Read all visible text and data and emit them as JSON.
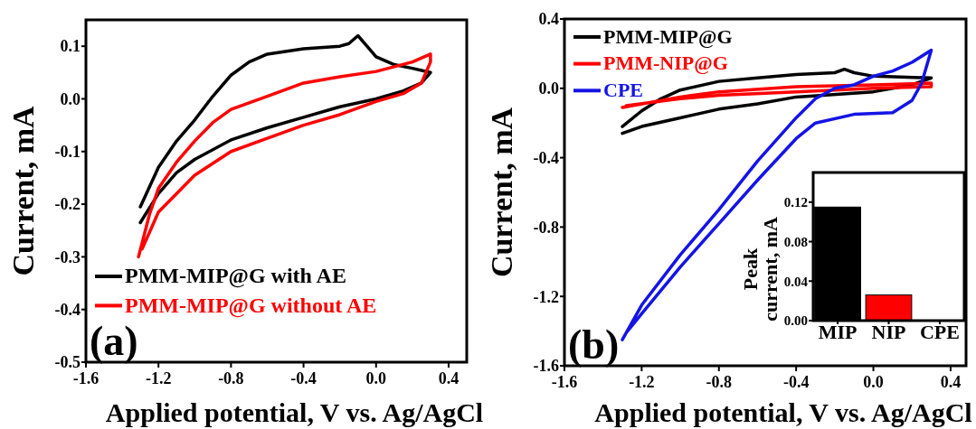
{
  "chart_data": [
    {
      "type": "line",
      "xlabel": "Applied potential, V vs. Ag/AgCl",
      "ylabel": "Current, mA",
      "xlim": [
        -1.6,
        0.5
      ],
      "ylim": [
        -0.5,
        0.15
      ],
      "xticks": [
        {
          "value": -1.6,
          "label": "-1.6"
        },
        {
          "value": -1.2,
          "label": "-1.2"
        },
        {
          "value": -0.8,
          "label": "-0.8"
        },
        {
          "value": -0.4,
          "label": "-0.4"
        },
        {
          "value": 0,
          "label": "0.0"
        },
        {
          "value": 0.4,
          "label": "0.4"
        }
      ],
      "yticks": [
        {
          "value": -0.5,
          "label": "-0.5"
        },
        {
          "value": -0.4,
          "label": "-0.4"
        },
        {
          "value": -0.3,
          "label": "-0.3"
        },
        {
          "value": -0.2,
          "label": "-0.2"
        },
        {
          "value": -0.1,
          "label": "-0.1"
        },
        {
          "value": 0,
          "label": "0.0"
        },
        {
          "value": 0.1,
          "label": "0.1"
        }
      ],
      "legend": "bottom left",
      "annotations": [
        "(a)"
      ],
      "series": [
        {
          "name": "PMM-MIP@G with AE",
          "color": "#000000",
          "x": [
            -1.3,
            -1.2,
            -1.1,
            -1.0,
            -0.9,
            -0.8,
            -0.7,
            -0.6,
            -0.4,
            -0.2,
            -0.15,
            -0.1,
            -0.05,
            0.0,
            0.1,
            0.2,
            0.3,
            0.25,
            0.15,
            0.0,
            -0.2,
            -0.4,
            -0.6,
            -0.8,
            -1.0,
            -1.1,
            -1.2,
            -1.3
          ],
          "values": [
            -0.205,
            -0.13,
            -0.08,
            -0.04,
            0.005,
            0.045,
            0.07,
            0.085,
            0.095,
            0.1,
            0.105,
            0.12,
            0.1,
            0.08,
            0.065,
            0.058,
            0.05,
            0.03,
            0.015,
            0.0,
            -0.015,
            -0.035,
            -0.055,
            -0.078,
            -0.115,
            -0.14,
            -0.18,
            -0.235
          ]
        },
        {
          "name": "PMM-MIP@G without AE",
          "color": "#ff0000",
          "x": [
            -1.31,
            -1.25,
            -1.2,
            -1.1,
            -1.0,
            -0.9,
            -0.8,
            -0.6,
            -0.4,
            -0.2,
            0.0,
            0.2,
            0.3,
            0.3,
            0.25,
            0.15,
            0.0,
            -0.2,
            -0.4,
            -0.6,
            -0.8,
            -1.0,
            -1.2,
            -1.29
          ],
          "values": [
            -0.3,
            -0.22,
            -0.17,
            -0.12,
            -0.08,
            -0.045,
            -0.02,
            0.005,
            0.03,
            0.042,
            0.052,
            0.07,
            0.085,
            0.07,
            0.03,
            0.01,
            -0.005,
            -0.03,
            -0.05,
            -0.075,
            -0.1,
            -0.145,
            -0.215,
            -0.285
          ]
        }
      ]
    },
    {
      "type": "line",
      "xlabel": "Applied potential, V vs. Ag/AgCl",
      "ylabel": "Current, mA",
      "xlim": [
        -1.6,
        0.48
      ],
      "ylim": [
        -1.6,
        0.4
      ],
      "xticks": [
        {
          "value": -1.6,
          "label": "-1.6"
        },
        {
          "value": -1.2,
          "label": "-1.2"
        },
        {
          "value": -0.8,
          "label": "-0.8"
        },
        {
          "value": -0.4,
          "label": "-0.4"
        },
        {
          "value": 0,
          "label": "0.0"
        },
        {
          "value": 0.4,
          "label": "0.4"
        }
      ],
      "yticks": [
        {
          "value": -1.6,
          "label": "-1.6"
        },
        {
          "value": -1.2,
          "label": "-1.2"
        },
        {
          "value": -0.8,
          "label": "-0.8"
        },
        {
          "value": -0.4,
          "label": "-0.4"
        },
        {
          "value": 0,
          "label": "0.0"
        },
        {
          "value": 0.4,
          "label": "0.4"
        }
      ],
      "legend": "top left",
      "annotations": [
        "(b)"
      ],
      "series": [
        {
          "name": "PMM-MIP@G",
          "color": "#000000",
          "x": [
            -1.3,
            -1.2,
            -1.1,
            -1.0,
            -0.8,
            -0.6,
            -0.4,
            -0.2,
            -0.15,
            -0.1,
            0.0,
            0.3,
            0.3,
            0.2,
            0.0,
            -0.4,
            -0.6,
            -0.8,
            -1.0,
            -1.2,
            -1.3
          ],
          "values": [
            -0.22,
            -0.13,
            -0.06,
            -0.01,
            0.04,
            0.06,
            0.08,
            0.09,
            0.11,
            0.09,
            0.07,
            0.06,
            0.06,
            0.02,
            -0.02,
            -0.05,
            -0.09,
            -0.12,
            -0.17,
            -0.22,
            -0.26
          ]
        },
        {
          "name": "PMM-NIP@G",
          "color": "#ff0000",
          "x": [
            -1.3,
            -1.0,
            -0.8,
            -0.4,
            0.0,
            0.3,
            0.3,
            0.0,
            -0.4,
            -0.8,
            -1.0,
            -1.28
          ],
          "values": [
            -0.11,
            -0.05,
            -0.02,
            0.01,
            0.02,
            0.03,
            0.01,
            0.0,
            -0.02,
            -0.04,
            -0.06,
            -0.1
          ]
        },
        {
          "name": "CPE",
          "color": "#1414e6",
          "x": [
            -1.3,
            -1.2,
            -1.0,
            -0.8,
            -0.6,
            -0.4,
            -0.3,
            -0.2,
            -0.1,
            0.0,
            0.1,
            0.2,
            0.3,
            0.25,
            0.2,
            0.1,
            -0.1,
            -0.3,
            -0.4,
            -0.6,
            -0.8,
            -1.0,
            -1.2,
            -1.28
          ],
          "values": [
            -1.45,
            -1.25,
            -0.96,
            -0.7,
            -0.42,
            -0.17,
            -0.06,
            0.0,
            0.02,
            0.07,
            0.1,
            0.15,
            0.22,
            0.03,
            -0.07,
            -0.14,
            -0.15,
            -0.2,
            -0.29,
            -0.53,
            -0.78,
            -1.03,
            -1.3,
            -1.41
          ]
        }
      ]
    },
    {
      "type": "bar",
      "ylabel": "Peak current, mA",
      "categories": [
        "MIP",
        "NIP",
        "CPE"
      ],
      "values": [
        0.115,
        0.026,
        0
      ],
      "colors": [
        "#000000",
        "#ff0000",
        "#1414e6"
      ],
      "ylim": [
        0,
        0.15
      ],
      "yticks": [
        {
          "value": 0,
          "label": "0.00"
        },
        {
          "value": 0.04,
          "label": "0.04"
        },
        {
          "value": 0.08,
          "label": "0.08"
        },
        {
          "value": 0.12,
          "label": "0.12"
        }
      ]
    }
  ]
}
